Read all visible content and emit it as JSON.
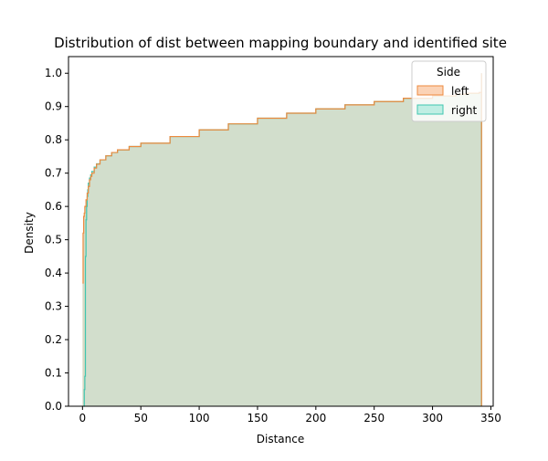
{
  "chart_data": {
    "type": "area",
    "title": "Distribution of dist between mapping boundary and identified site",
    "xlabel": "Distance",
    "ylabel": "Density",
    "xlim": [
      -12,
      352
    ],
    "ylim": [
      0,
      1.05
    ],
    "xticks": [
      0,
      50,
      100,
      150,
      200,
      250,
      300,
      350
    ],
    "yticks": [
      0.0,
      0.1,
      0.2,
      0.3,
      0.4,
      0.5,
      0.6,
      0.7,
      0.8,
      0.9,
      1.0
    ],
    "xtick_labels": [
      "0",
      "50",
      "100",
      "150",
      "200",
      "250",
      "300",
      "350"
    ],
    "ytick_labels": [
      "0.0",
      "0.1",
      "0.2",
      "0.3",
      "0.4",
      "0.5",
      "0.6",
      "0.7",
      "0.8",
      "0.9",
      "1.0"
    ],
    "grid": false,
    "legend": {
      "title": "Side",
      "placement": "top-right",
      "entries": [
        "left",
        "right"
      ]
    },
    "series": [
      {
        "name": "left",
        "edge_color": "#ee8a3e",
        "fill_color": "#fbd3b6",
        "x": [
          0,
          0.5,
          1,
          1.5,
          2,
          3,
          4,
          5,
          6,
          7,
          8,
          10,
          12,
          15,
          20,
          25,
          30,
          40,
          50,
          75,
          100,
          125,
          150,
          175,
          200,
          225,
          250,
          275,
          300,
          320,
          330,
          340,
          342
        ],
        "y": [
          0.37,
          0.52,
          0.57,
          0.58,
          0.6,
          0.62,
          0.64,
          0.66,
          0.68,
          0.69,
          0.7,
          0.715,
          0.727,
          0.74,
          0.752,
          0.762,
          0.77,
          0.78,
          0.79,
          0.81,
          0.83,
          0.848,
          0.865,
          0.88,
          0.893,
          0.905,
          0.915,
          0.925,
          0.932,
          0.937,
          0.94,
          0.942,
          1.0
        ]
      },
      {
        "name": "right",
        "edge_color": "#3fc6b0",
        "fill_color": "#bfeee3",
        "x": [
          1,
          1.5,
          2,
          2.5,
          3,
          3.5,
          4,
          4.5,
          5,
          6,
          7,
          8,
          10,
          12,
          15,
          20,
          25,
          30,
          40,
          50,
          75,
          100,
          125,
          150,
          175,
          200,
          225,
          250,
          275,
          300,
          320,
          330,
          340,
          342
        ],
        "y": [
          0.0,
          0.05,
          0.09,
          0.45,
          0.56,
          0.6,
          0.63,
          0.65,
          0.67,
          0.685,
          0.695,
          0.705,
          0.718,
          0.728,
          0.74,
          0.752,
          0.762,
          0.77,
          0.78,
          0.79,
          0.81,
          0.83,
          0.848,
          0.865,
          0.88,
          0.893,
          0.905,
          0.915,
          0.925,
          0.932,
          0.937,
          0.94,
          0.942,
          1.0
        ]
      }
    ],
    "overlap_fill_color": "#d8d9c4"
  }
}
